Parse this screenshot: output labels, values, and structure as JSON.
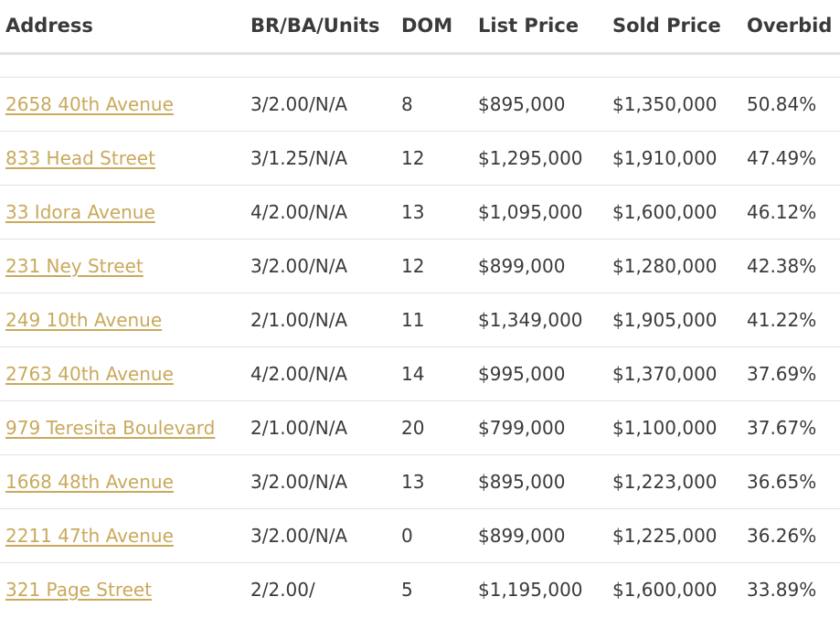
{
  "table": {
    "headers": [
      "Address",
      "BR/BA/Units",
      "DOM",
      "List Price",
      "Sold Price",
      "Overbid"
    ],
    "rows": [
      {
        "address": "2658 40th Avenue",
        "br_ba_units": "3/2.00/N/A",
        "dom": "8",
        "list_price": "$895,000",
        "sold_price": "$1,350,000",
        "overbid": "50.84%"
      },
      {
        "address": "833 Head Street",
        "br_ba_units": "3/1.25/N/A",
        "dom": "12",
        "list_price": "$1,295,000",
        "sold_price": "$1,910,000",
        "overbid": "47.49%"
      },
      {
        "address": "33 Idora Avenue",
        "br_ba_units": "4/2.00/N/A",
        "dom": "13",
        "list_price": "$1,095,000",
        "sold_price": "$1,600,000",
        "overbid": "46.12%"
      },
      {
        "address": "231 Ney Street",
        "br_ba_units": "3/2.00/N/A",
        "dom": "12",
        "list_price": "$899,000",
        "sold_price": "$1,280,000",
        "overbid": "42.38%"
      },
      {
        "address": "249 10th Avenue",
        "br_ba_units": "2/1.00/N/A",
        "dom": "11",
        "list_price": "$1,349,000",
        "sold_price": "$1,905,000",
        "overbid": "41.22%"
      },
      {
        "address": "2763 40th Avenue",
        "br_ba_units": "4/2.00/N/A",
        "dom": "14",
        "list_price": "$995,000",
        "sold_price": "$1,370,000",
        "overbid": "37.69%"
      },
      {
        "address": "979 Teresita Boulevard",
        "br_ba_units": "2/1.00/N/A",
        "dom": "20",
        "list_price": "$799,000",
        "sold_price": "$1,100,000",
        "overbid": "37.67%"
      },
      {
        "address": "1668 48th Avenue",
        "br_ba_units": "3/2.00/N/A",
        "dom": "13",
        "list_price": "$895,000",
        "sold_price": "$1,223,000",
        "overbid": "36.65%"
      },
      {
        "address": "2211 47th Avenue",
        "br_ba_units": "3/2.00/N/A",
        "dom": "0",
        "list_price": "$899,000",
        "sold_price": "$1,225,000",
        "overbid": "36.26%"
      },
      {
        "address": "321 Page Street",
        "br_ba_units": "2/2.00/",
        "dom": "5",
        "list_price": "$1,195,000",
        "sold_price": "$1,600,000",
        "overbid": "33.89%"
      }
    ]
  },
  "colors": {
    "link": "#c9a95c",
    "text": "#3a3a3a",
    "divider": "#e2e2e2"
  }
}
